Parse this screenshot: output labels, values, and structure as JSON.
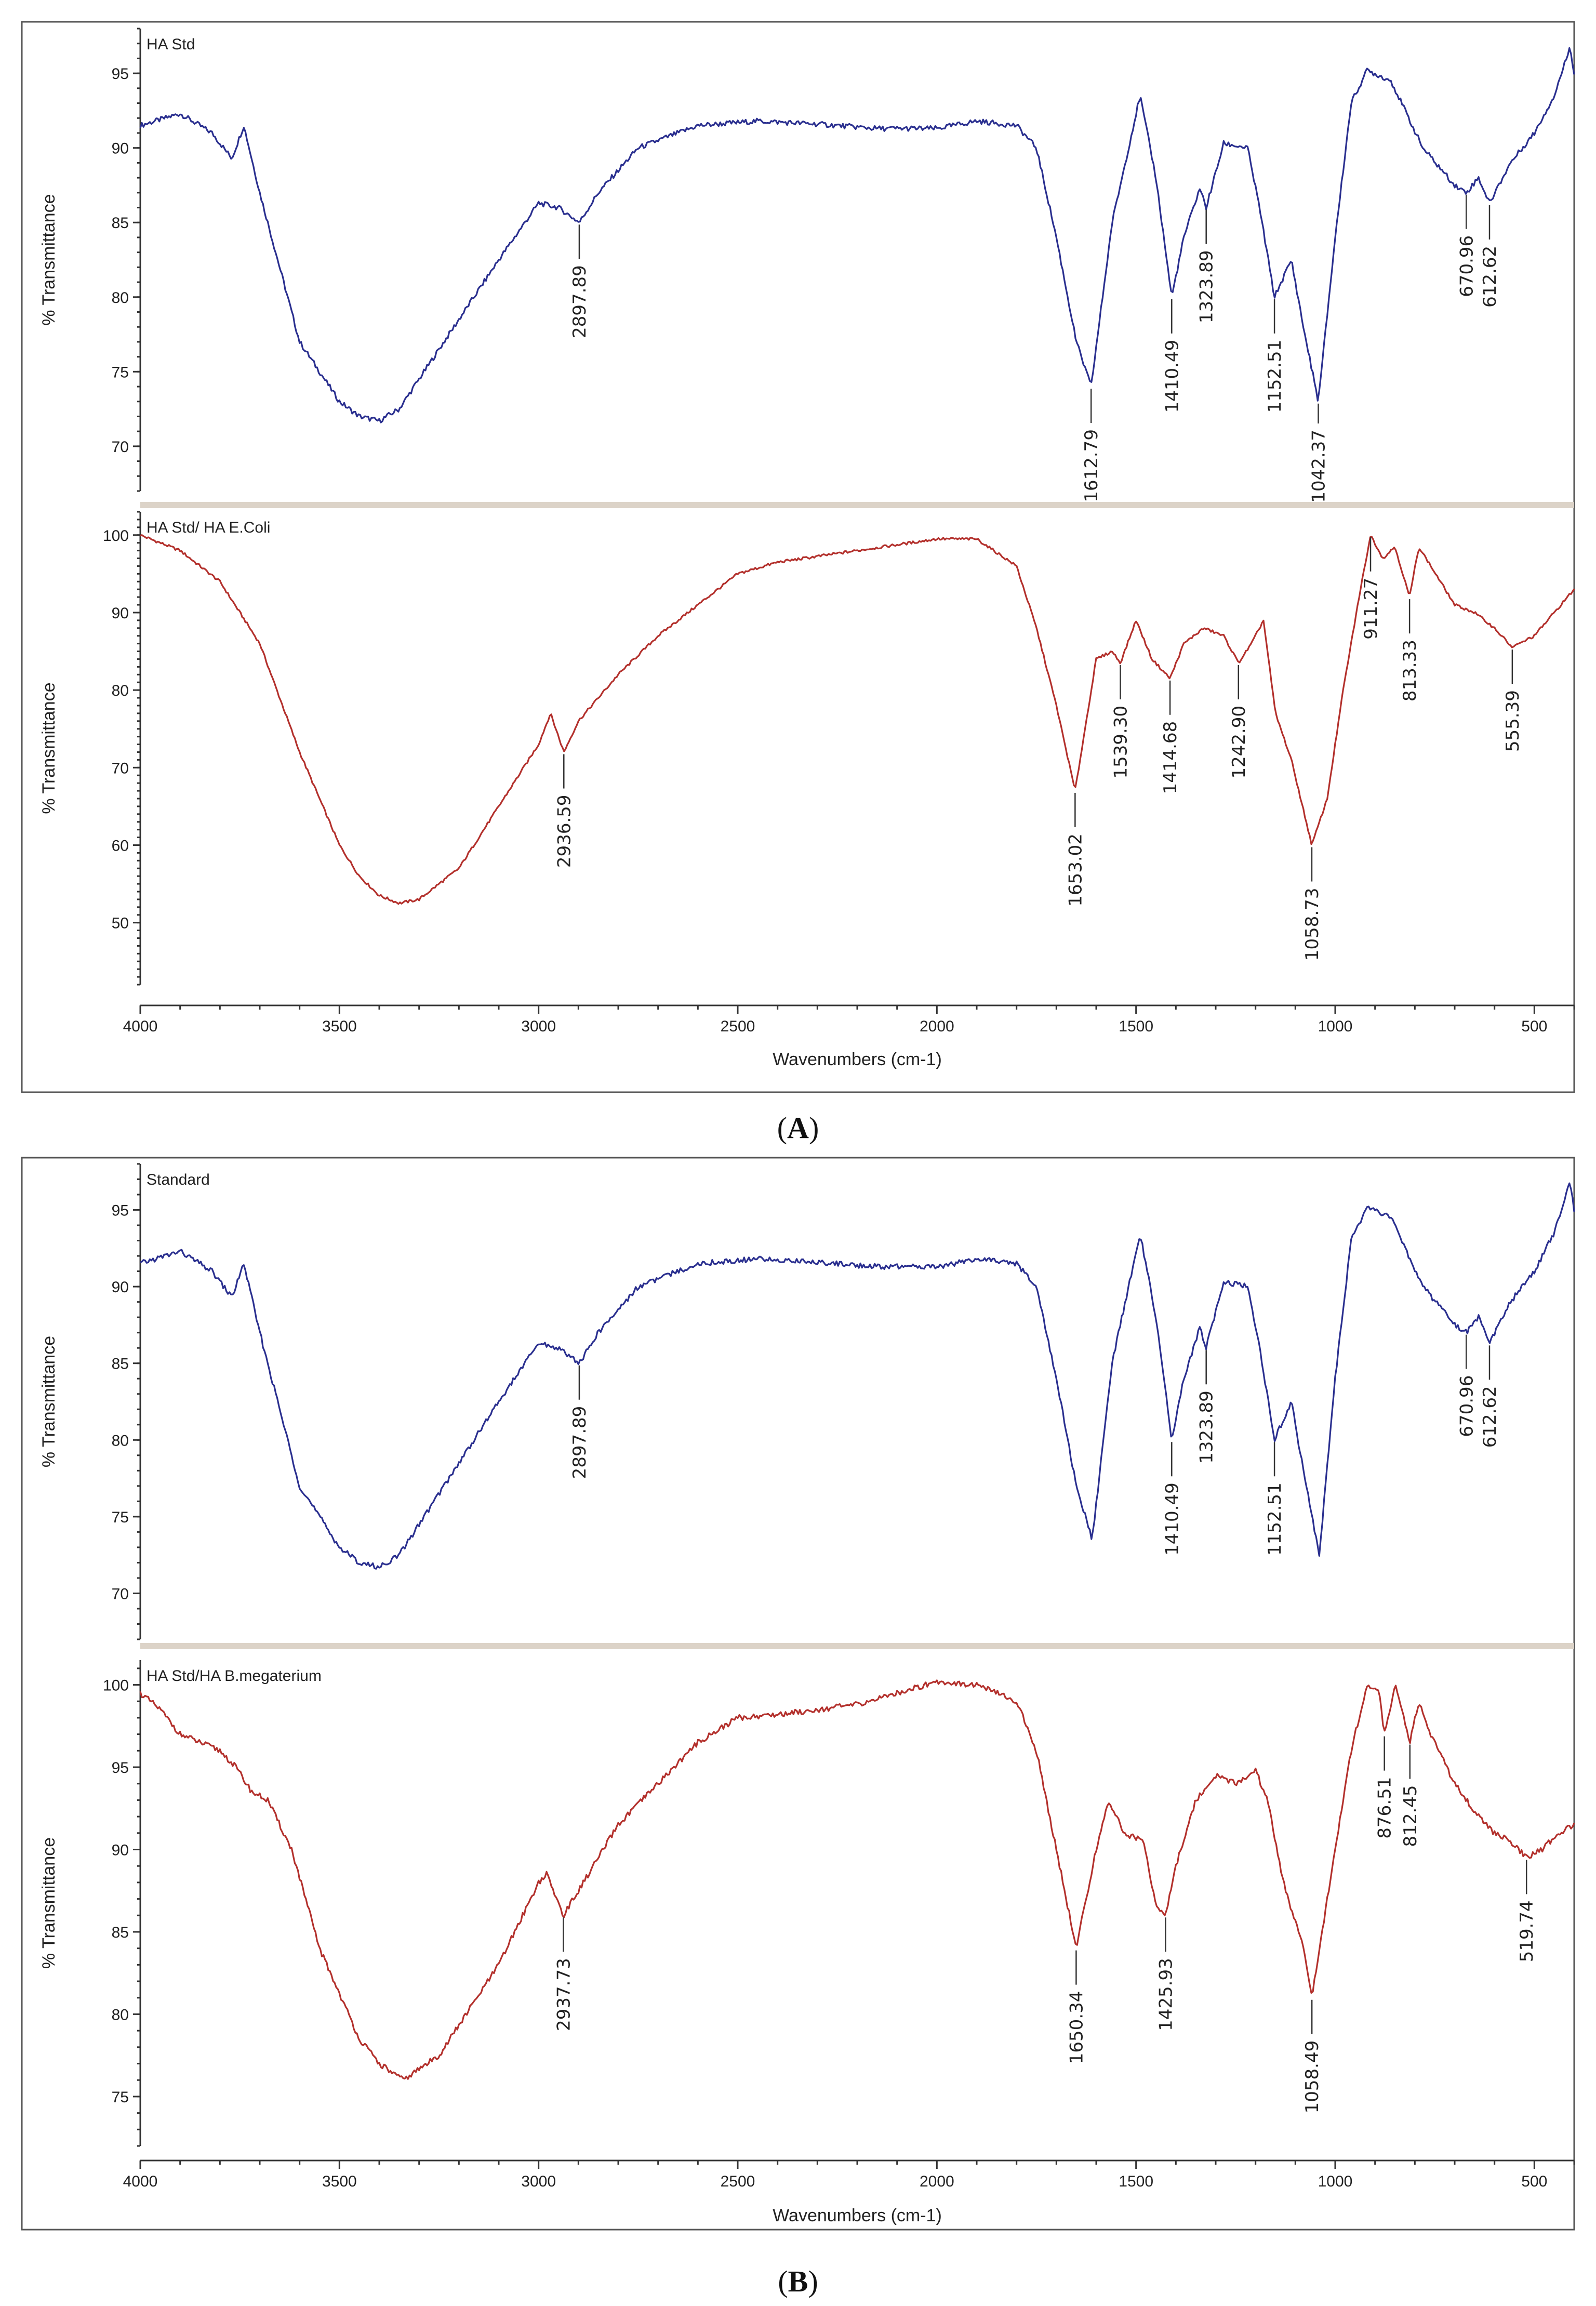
{
  "chart_data": [
    {
      "type": "line",
      "panel": "A",
      "caption": {
        "open": "(",
        "letter": "A",
        "close": ")"
      },
      "xlabel": "Wavenumbers (cm-1)",
      "xlim": [
        4000,
        400
      ],
      "xticks": [
        4000,
        3500,
        3000,
        2500,
        2000,
        1500,
        1000,
        500
      ],
      "subplots": [
        {
          "name": "HA Std",
          "color": "#2a2f8f",
          "ylabel": "% Transmittance",
          "ylim": [
            67,
            98
          ],
          "yticks": [
            70,
            75,
            80,
            85,
            90,
            95
          ],
          "x": [
            4000,
            3900,
            3820,
            3770,
            3740,
            3700,
            3650,
            3600,
            3500,
            3450,
            3400,
            3350,
            3250,
            3100,
            3000,
            2950,
            2897.89,
            2850,
            2750,
            2600,
            2450,
            2300,
            2150,
            2000,
            1900,
            1800,
            1750,
            1700,
            1650,
            1612.79,
            1560,
            1490,
            1450,
            1410.49,
            1380,
            1340,
            1323.89,
            1280,
            1220,
            1190,
            1152.51,
            1110,
            1080,
            1042.37,
            1000,
            960,
            920,
            860,
            780,
            700,
            670.96,
            640,
            612.62,
            560,
            500,
            450,
            410,
            400
          ],
          "y": [
            91.5,
            92.3,
            91.0,
            89.3,
            91.5,
            87.0,
            82.0,
            77.0,
            73.0,
            72.0,
            71.7,
            72.5,
            76.5,
            82.5,
            86.3,
            86.0,
            85.0,
            87.0,
            90.0,
            91.5,
            91.8,
            91.6,
            91.3,
            91.3,
            91.8,
            91.5,
            90.0,
            84.0,
            77.0,
            74.0,
            85.0,
            93.5,
            88.0,
            80.0,
            84.0,
            87.3,
            86.0,
            90.3,
            90.0,
            86.0,
            80.0,
            82.5,
            78.0,
            73.0,
            84.0,
            93.0,
            95.2,
            94.5,
            90.0,
            87.5,
            87.0,
            88.0,
            86.3,
            89.0,
            91.0,
            93.5,
            96.8,
            95.0
          ],
          "peaks": [
            {
              "label": "2897.89",
              "x": 2897.89
            },
            {
              "label": "1612.79",
              "x": 1612.79
            },
            {
              "label": "1410.49",
              "x": 1410.49
            },
            {
              "label": "1323.89",
              "x": 1323.89
            },
            {
              "label": "1152.51",
              "x": 1152.51
            },
            {
              "label": "1042.37",
              "x": 1042.37
            },
            {
              "label": "670.96",
              "x": 670.96
            },
            {
              "label": "612.62",
              "x": 612.62
            }
          ]
        },
        {
          "name": "HA Std/ HA E.Coli",
          "color": "#b3302c",
          "ylabel": "% Transmittance",
          "ylim": [
            42,
            103
          ],
          "yticks": [
            50,
            60,
            70,
            80,
            90,
            100
          ],
          "x": [
            4000,
            3900,
            3800,
            3700,
            3600,
            3500,
            3450,
            3400,
            3350,
            3300,
            3200,
            3100,
            3000,
            2970,
            2936.59,
            2900,
            2800,
            2700,
            2600,
            2500,
            2400,
            2200,
            2000,
            1900,
            1800,
            1750,
            1700,
            1653.02,
            1600,
            1560,
            1539.3,
            1500,
            1460,
            1414.68,
            1380,
            1330,
            1280,
            1242.9,
            1210,
            1180,
            1150,
            1110,
            1058.73,
            1020,
            980,
            940,
            911.27,
            880,
            850,
            813.33,
            790,
            760,
            700,
            650,
            600,
            555.39,
            500,
            450,
            400
          ],
          "y": [
            100.0,
            98.0,
            94.0,
            86.0,
            72.0,
            60.0,
            56.0,
            53.5,
            52.5,
            53.0,
            57.0,
            65.0,
            73.0,
            77.0,
            72.0,
            76.0,
            82.0,
            87.0,
            91.0,
            95.0,
            96.5,
            98.0,
            99.5,
            99.5,
            96.0,
            88.0,
            78.0,
            67.0,
            84.0,
            85.0,
            83.5,
            89.0,
            84.0,
            81.5,
            86.0,
            88.0,
            87.0,
            83.5,
            86.0,
            89.0,
            77.0,
            71.0,
            60.0,
            66.0,
            80.0,
            92.0,
            100.0,
            97.0,
            98.5,
            92.0,
            98.5,
            96.0,
            91.0,
            90.0,
            88.0,
            85.5,
            87.0,
            90.0,
            93.0
          ],
          "peaks": [
            {
              "label": "2936.59",
              "x": 2936.59
            },
            {
              "label": "1653.02",
              "x": 1653.02
            },
            {
              "label": "1539.30",
              "x": 1539.3
            },
            {
              "label": "1414.68",
              "x": 1414.68
            },
            {
              "label": "1242.90",
              "x": 1242.9
            },
            {
              "label": "1058.73",
              "x": 1058.73
            },
            {
              "label": "911.27",
              "x": 911.27
            },
            {
              "label": "813.33",
              "x": 813.33
            },
            {
              "label": "555.39",
              "x": 555.39
            }
          ]
        }
      ]
    },
    {
      "type": "line",
      "panel": "B",
      "caption": {
        "open": "(",
        "letter": "B",
        "close": ")"
      },
      "xlabel": "Wavenumbers (cm-1)",
      "xlim": [
        4000,
        400
      ],
      "xticks": [
        4000,
        3500,
        3000,
        2500,
        2000,
        1500,
        1000,
        500
      ],
      "subplots": [
        {
          "name": "Standard",
          "color": "#2a2f8f",
          "ylabel": "% Transmittance",
          "ylim": [
            67,
            98
          ],
          "yticks": [
            70,
            75,
            80,
            85,
            90,
            95
          ],
          "x": [
            4000,
            3900,
            3820,
            3770,
            3740,
            3700,
            3650,
            3600,
            3500,
            3450,
            3400,
            3350,
            3250,
            3100,
            3000,
            2950,
            2897.89,
            2850,
            2750,
            2600,
            2450,
            2300,
            2150,
            2000,
            1900,
            1800,
            1750,
            1700,
            1650,
            1610,
            1560,
            1490,
            1450,
            1410.49,
            1380,
            1340,
            1323.89,
            1280,
            1220,
            1190,
            1152.51,
            1110,
            1080,
            1040,
            1000,
            960,
            920,
            860,
            780,
            700,
            670.96,
            640,
            612.62,
            560,
            500,
            450,
            410,
            400
          ],
          "y": [
            91.5,
            92.3,
            91.0,
            89.3,
            91.5,
            87.0,
            82.0,
            77.0,
            73.0,
            72.0,
            71.7,
            72.5,
            76.5,
            82.5,
            86.3,
            86.0,
            85.0,
            87.0,
            90.0,
            91.5,
            91.8,
            91.6,
            91.3,
            91.3,
            91.8,
            91.5,
            90.0,
            84.0,
            77.0,
            73.5,
            85.0,
            93.5,
            88.0,
            80.0,
            84.0,
            87.3,
            86.0,
            90.3,
            90.0,
            86.0,
            80.0,
            82.5,
            78.0,
            72.5,
            84.0,
            93.0,
            95.2,
            94.5,
            90.0,
            87.5,
            87.0,
            88.0,
            86.3,
            89.0,
            91.0,
            93.5,
            96.8,
            95.0
          ],
          "peaks": [
            {
              "label": "2897.89",
              "x": 2897.89
            },
            {
              "label": "1410.49",
              "x": 1410.49
            },
            {
              "label": "1323.89",
              "x": 1323.89
            },
            {
              "label": "1152.51",
              "x": 1152.51
            },
            {
              "label": "670.96",
              "x": 670.96
            },
            {
              "label": "612.62",
              "x": 612.62
            }
          ]
        },
        {
          "name": "HA Std/HA B.megaterium",
          "color": "#b3302c",
          "ylabel": "% Transmittance",
          "ylim": [
            72,
            101.5
          ],
          "yticks": [
            75,
            80,
            85,
            90,
            95,
            100
          ],
          "x": [
            4000,
            3950,
            3900,
            3800,
            3760,
            3720,
            3680,
            3620,
            3550,
            3450,
            3400,
            3340,
            3250,
            3100,
            3000,
            2980,
            2937.73,
            2900,
            2800,
            2700,
            2600,
            2500,
            2400,
            2200,
            2000,
            1900,
            1800,
            1750,
            1700,
            1650.34,
            1600,
            1570,
            1530,
            1480,
            1450,
            1425.93,
            1400,
            1350,
            1300,
            1250,
            1200,
            1170,
            1130,
            1080,
            1058.49,
            1020,
            960,
            920,
            890,
            876.51,
            850,
            812.45,
            790,
            760,
            700,
            640,
            600,
            560,
            519.74,
            480,
            440,
            400
          ],
          "y": [
            99.5,
            98.5,
            97.0,
            96.0,
            95.0,
            93.5,
            93.0,
            90.0,
            84.0,
            78.5,
            77.0,
            76.0,
            77.5,
            83.0,
            88.0,
            88.5,
            86.0,
            87.5,
            91.5,
            94.0,
            96.5,
            98.0,
            98.2,
            98.8,
            100.2,
            100.0,
            99.0,
            96.0,
            90.0,
            84.0,
            90.0,
            93.0,
            91.0,
            90.5,
            86.5,
            86.0,
            89.0,
            93.0,
            94.5,
            94.0,
            94.8,
            93.0,
            88.0,
            84.0,
            81.0,
            87.0,
            96.0,
            100.0,
            99.5,
            97.0,
            100.0,
            96.5,
            99.0,
            97.0,
            94.0,
            92.0,
            91.0,
            90.5,
            89.5,
            90.0,
            91.0,
            91.5
          ],
          "peaks": [
            {
              "label": "2937.73",
              "x": 2937.73
            },
            {
              "label": "1650.34",
              "x": 1650.34
            },
            {
              "label": "1425.93",
              "x": 1425.93
            },
            {
              "label": "1058.49",
              "x": 1058.49
            },
            {
              "label": "876.51",
              "x": 876.51
            },
            {
              "label": "812.45",
              "x": 812.45
            },
            {
              "label": "519.74",
              "x": 519.74
            }
          ]
        }
      ]
    }
  ]
}
